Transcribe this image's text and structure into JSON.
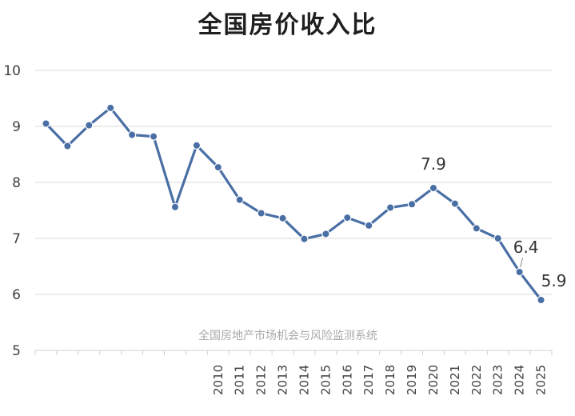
{
  "chart_data": {
    "type": "line",
    "title": "全国房价收入比",
    "xlabel": "",
    "ylabel": "",
    "ylim": [
      5,
      10
    ],
    "yticks": [
      "5",
      "6",
      "7",
      "8",
      "9",
      "10"
    ],
    "grid": true,
    "watermark": "全国房地产市场机会与风险监测系统",
    "categories": [
      "",
      "",
      "",
      "",
      "",
      "",
      "",
      "",
      "2010",
      "2011",
      "2012",
      "2013",
      "2014",
      "2015",
      "2016",
      "2017",
      "2018",
      "2019",
      "2020",
      "2021",
      "2022",
      "2023",
      "2024",
      "2025"
    ],
    "series": [
      {
        "values": [
          9.05,
          8.65,
          9.02,
          9.33,
          8.85,
          8.82,
          7.56,
          8.66,
          8.27,
          7.69,
          7.45,
          7.36,
          6.99,
          7.08,
          7.37,
          7.23,
          7.55,
          7.61,
          7.9,
          7.62,
          7.18,
          7.0,
          6.4,
          5.9
        ],
        "color": "#4a6fa5"
      }
    ],
    "data_labels": [
      {
        "index": 18,
        "text": "7.9"
      },
      {
        "index": 22,
        "text": "6.4"
      },
      {
        "index": 23,
        "text": "5.9"
      }
    ]
  }
}
